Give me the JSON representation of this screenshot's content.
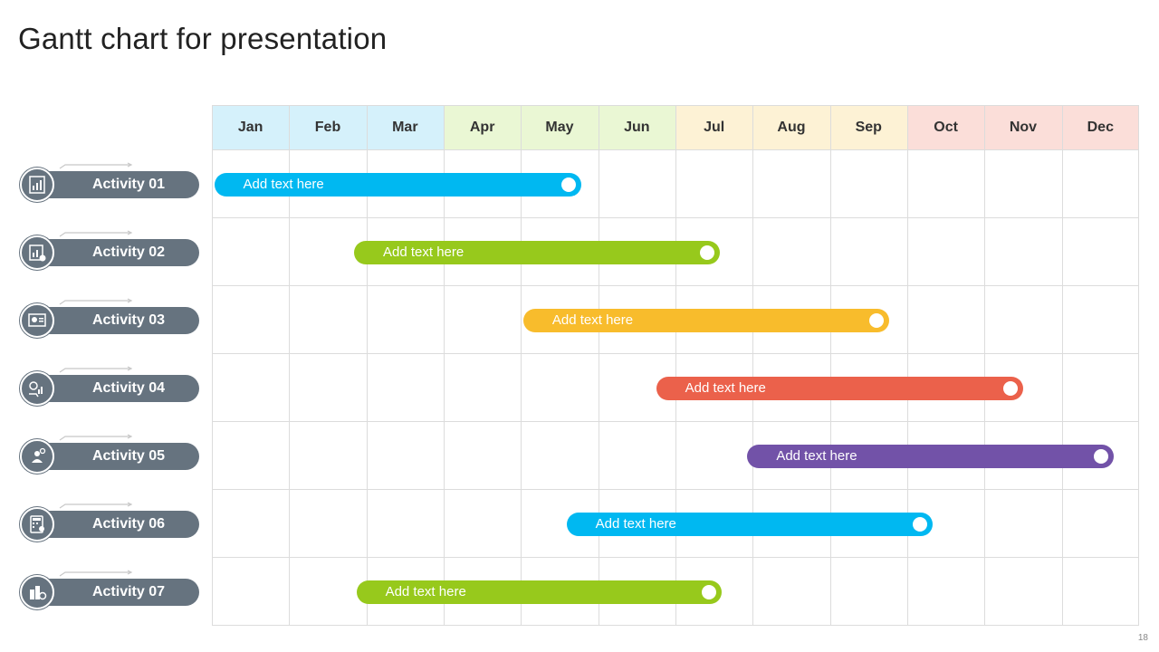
{
  "title": "Gantt chart for presentation",
  "page_number": "18",
  "colors": {
    "pill": "#66737f",
    "blue": "#00b8f1",
    "green": "#97c91c",
    "yellow": "#f8bc2c",
    "red": "#eb614b",
    "purple": "#7252a8"
  },
  "chart_data": {
    "type": "gantt",
    "months": [
      "Jan",
      "Feb",
      "Mar",
      "Apr",
      "May",
      "Jun",
      "Jul",
      "Aug",
      "Sep",
      "Oct",
      "Nov",
      "Dec"
    ],
    "month_header_colors": [
      "#d5f1fb",
      "#d5f1fb",
      "#d5f1fb",
      "#eaf7d4",
      "#eaf7d4",
      "#eaf7d4",
      "#fdf2d5",
      "#fdf2d5",
      "#fdf2d5",
      "#fbded9",
      "#fbded9",
      "#fbded9"
    ],
    "tasks": [
      {
        "name": "Activity 01",
        "label": "Add text here",
        "start": 0.03,
        "end": 4.78,
        "color": "#00b8f1",
        "icon": "presentation-chart-icon"
      },
      {
        "name": "Activity 02",
        "label": "Add text here",
        "start": 1.84,
        "end": 6.58,
        "color": "#97c91c",
        "icon": "financial-report-icon"
      },
      {
        "name": "Activity 03",
        "label": "Add text here",
        "start": 4.03,
        "end": 8.77,
        "color": "#f8bc2c",
        "icon": "dashboard-icon"
      },
      {
        "name": "Activity 04",
        "label": "Add text here",
        "start": 5.75,
        "end": 10.5,
        "color": "#eb614b",
        "icon": "investment-growth-icon"
      },
      {
        "name": "Activity 05",
        "label": "Add text here",
        "start": 6.93,
        "end": 11.67,
        "color": "#7252a8",
        "icon": "team-settings-icon"
      },
      {
        "name": "Activity 06",
        "label": "Add text here",
        "start": 4.59,
        "end": 9.33,
        "color": "#00b8f1",
        "icon": "calculator-icon"
      },
      {
        "name": "Activity 07",
        "label": "Add text here",
        "start": 1.87,
        "end": 6.6,
        "color": "#97c91c",
        "icon": "building-gear-icon"
      }
    ]
  }
}
